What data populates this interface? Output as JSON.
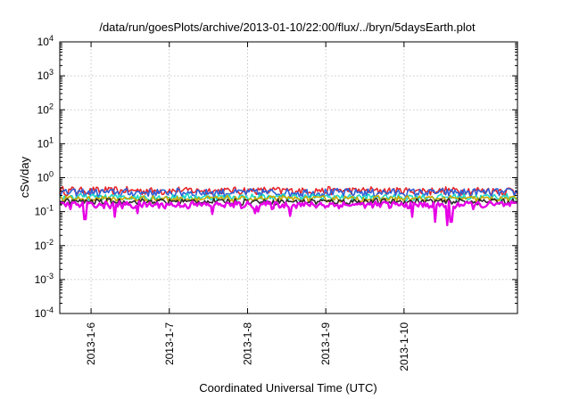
{
  "chart_data": {
    "type": "line",
    "title": "/data/run/goesPlots/archive/2013-01-10/22:00/flux/../bryn/5daysEarth.plot",
    "xlabel": "Coordinated Universal Time (UTC)",
    "ylabel": "cSv/day",
    "yscale": "log",
    "ylim": [
      0.0001,
      10000
    ],
    "xlim": [
      5.1,
      10.95
    ],
    "x_unit": "days since 2013-01-01 00:00 UTC",
    "y_ticks": [
      {
        "base": "10",
        "exp": "-4",
        "value": 0.0001
      },
      {
        "base": "10",
        "exp": "-3",
        "value": 0.001
      },
      {
        "base": "10",
        "exp": "-2",
        "value": 0.01
      },
      {
        "base": "10",
        "exp": "-1",
        "value": 0.1
      },
      {
        "base": "10",
        "exp": "0",
        "value": 1
      },
      {
        "base": "10",
        "exp": "1",
        "value": 10
      },
      {
        "base": "10",
        "exp": "2",
        "value": 100
      },
      {
        "base": "10",
        "exp": "3",
        "value": 1000
      },
      {
        "base": "10",
        "exp": "4",
        "value": 10000
      }
    ],
    "x_ticks": [
      {
        "label": "2013-1-6",
        "value": 5.5
      },
      {
        "label": "2013-1-7",
        "value": 6.5
      },
      {
        "label": "2013-1-8",
        "value": 7.5
      },
      {
        "label": "2013-1-9",
        "value": 8.5
      },
      {
        "label": "2013-1-10",
        "value": 9.5
      }
    ],
    "grid": true,
    "legend": "none",
    "series": [
      {
        "color": "#e8262a",
        "base": 0.42,
        "noise": 0.12,
        "dips": []
      },
      {
        "color": "#2f5fd8",
        "base": 0.37,
        "noise": 0.11,
        "dips": []
      },
      {
        "color": "#18d8c8",
        "base": 0.27,
        "noise": 0.06,
        "dips": []
      },
      {
        "color": "#c9a800",
        "base": 0.24,
        "noise": 0.05,
        "dips": []
      },
      {
        "color": "#2b2b2b",
        "base": 0.2,
        "noise": 0.04,
        "dips": []
      },
      {
        "color": "#e600e6",
        "base": 0.16,
        "noise": 0.04,
        "dips": [
          {
            "x": 5.42,
            "y": 0.06
          },
          {
            "x": 5.8,
            "y": 0.07
          },
          {
            "x": 6.1,
            "y": 0.09
          },
          {
            "x": 7.05,
            "y": 0.085
          },
          {
            "x": 7.6,
            "y": 0.09
          },
          {
            "x": 7.63,
            "y": 0.1
          },
          {
            "x": 8.05,
            "y": 0.075
          },
          {
            "x": 9.6,
            "y": 0.07
          },
          {
            "x": 9.9,
            "y": 0.05
          },
          {
            "x": 10.05,
            "y": 0.04
          },
          {
            "x": 10.1,
            "y": 0.05
          }
        ]
      }
    ]
  }
}
